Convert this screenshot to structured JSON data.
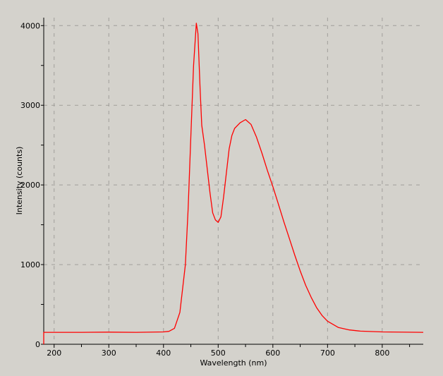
{
  "chart_data": {
    "type": "line",
    "title": "",
    "xlabel": "Wavelength (nm)",
    "ylabel": "Intensity (counts)",
    "xlim": [
      181,
      875
    ],
    "ylim": [
      0,
      4100
    ],
    "xticks": [
      200,
      300,
      400,
      500,
      600,
      700,
      800
    ],
    "yticks": [
      0,
      1000,
      2000,
      3000,
      4000
    ],
    "grid": true,
    "legend": "none",
    "series": [
      {
        "color": "#ff0000",
        "x": [
          181,
          200,
          250,
          300,
          350,
          400,
          410,
          420,
          430,
          440,
          445,
          450,
          455,
          460,
          463,
          467,
          470,
          475,
          480,
          485,
          490,
          495,
          500,
          505,
          510,
          515,
          520,
          525,
          530,
          540,
          550,
          560,
          570,
          580,
          590,
          600,
          610,
          620,
          630,
          640,
          650,
          660,
          670,
          680,
          690,
          700,
          720,
          740,
          760,
          800,
          875
        ],
        "y": [
          150,
          150,
          150,
          152,
          150,
          155,
          162,
          200,
          400,
          1000,
          1700,
          2600,
          3500,
          4030,
          3900,
          3200,
          2750,
          2500,
          2200,
          1900,
          1650,
          1560,
          1530,
          1600,
          1850,
          2150,
          2450,
          2620,
          2710,
          2780,
          2820,
          2760,
          2600,
          2400,
          2180,
          1980,
          1760,
          1540,
          1330,
          1120,
          920,
          740,
          590,
          460,
          360,
          290,
          210,
          180,
          165,
          155,
          150
        ]
      }
    ]
  }
}
